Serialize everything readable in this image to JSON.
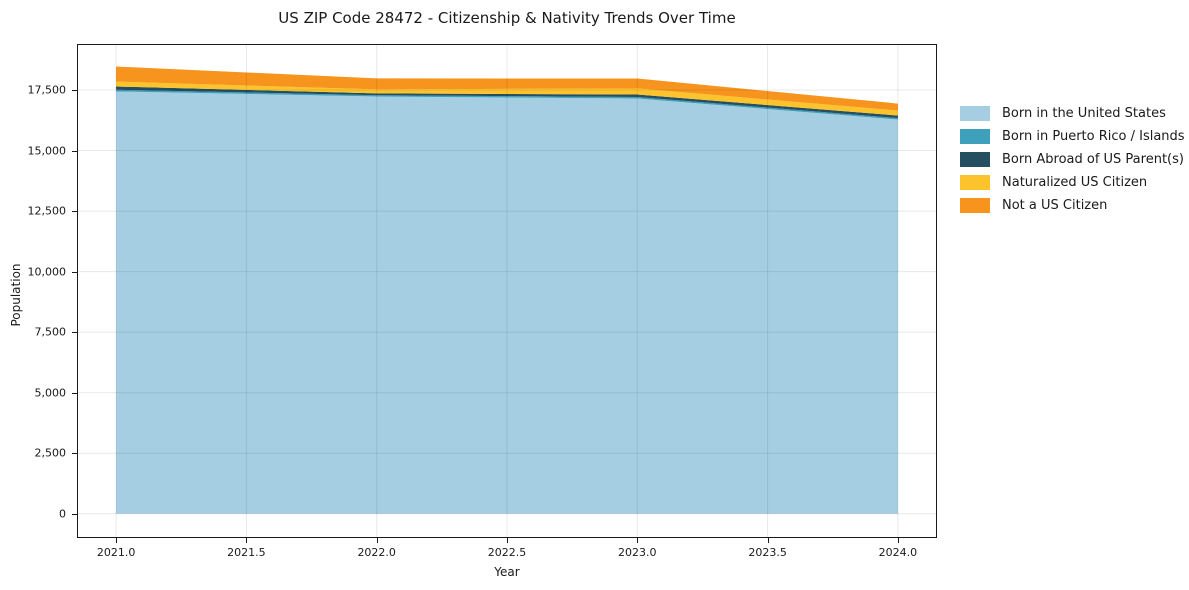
{
  "chart_data": {
    "type": "area",
    "stacked": true,
    "title": "US ZIP Code 28472 - Citizenship & Nativity Trends Over Time",
    "xlabel": "Year",
    "ylabel": "Population",
    "x": [
      2021,
      2022,
      2023,
      2024
    ],
    "series": [
      {
        "name": "Born in the United States",
        "color": "#a5cee3",
        "values": [
          17440,
          17230,
          17150,
          16280
        ]
      },
      {
        "name": "Born in Puerto Rico / Islands",
        "color": "#3fa0bb",
        "values": [
          70,
          55,
          60,
          60
        ]
      },
      {
        "name": "Born Abroad of US Parent(s)",
        "color": "#254e60",
        "values": [
          135,
          75,
          105,
          105
        ]
      },
      {
        "name": "Naturalized US Citizen",
        "color": "#fcc32d",
        "values": [
          205,
          165,
          250,
          205
        ]
      },
      {
        "name": "Not a US Citizen",
        "color": "#f6941e",
        "values": [
          620,
          455,
          410,
          290
        ]
      }
    ],
    "xlim": [
      2020.85,
      2024.15
    ],
    "ylim": [
      -1000,
      19400
    ],
    "xticks": {
      "values": [
        2021,
        2021.5,
        2022,
        2022.5,
        2023,
        2023.5,
        2024
      ],
      "labels": [
        "2021.0",
        "2021.5",
        "2022.0",
        "2022.5",
        "2023.0",
        "2023.5",
        "2024.0"
      ]
    },
    "yticks": {
      "values": [
        0,
        2500,
        5000,
        7500,
        10000,
        12500,
        15000,
        17500
      ],
      "labels": [
        "0",
        "2,500",
        "5,000",
        "7,500",
        "10,000",
        "12,500",
        "15,000",
        "17,500"
      ]
    },
    "grid": true,
    "legend_position": "right of plot"
  },
  "colors": {
    "background": "#ffffff",
    "spine": "#1a1a1a",
    "grid": "rgba(0,0,0,0.09)",
    "text": "#1a1a1a"
  }
}
